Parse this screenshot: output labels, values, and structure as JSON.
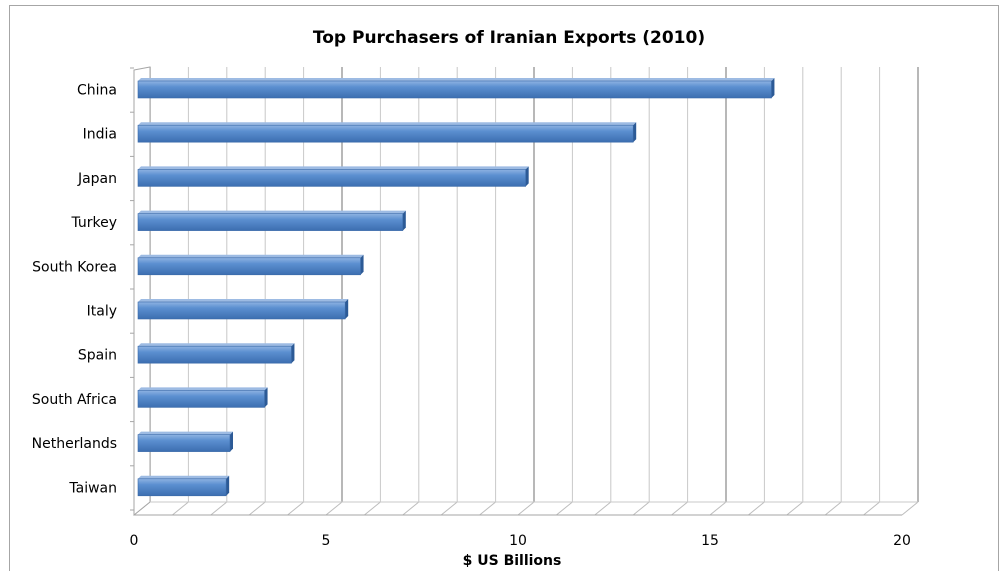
{
  "chart_data": {
    "type": "bar",
    "orientation": "horizontal",
    "title": "Top Purchasers of Iranian Exports (2010)",
    "xlabel": "$ US Billions",
    "ylabel": "",
    "categories": [
      "China",
      "India",
      "Japan",
      "Turkey",
      "South Korea",
      "Italy",
      "Spain",
      "South Africa",
      "Netherlands",
      "Taiwan"
    ],
    "values": [
      16.6,
      13.0,
      10.2,
      7.0,
      5.9,
      5.5,
      4.1,
      3.4,
      2.5,
      2.4
    ],
    "xlim": [
      0,
      20
    ],
    "xticks": [
      0,
      5,
      10,
      15,
      20
    ],
    "bar_color": "#4f81bd",
    "grid": true,
    "legend": "none",
    "style": "3d"
  }
}
